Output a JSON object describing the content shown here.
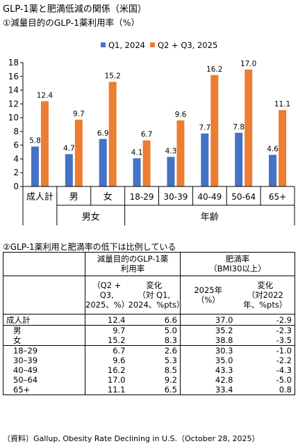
{
  "title": "GLP-1薬と肥満低減の関係（米国）",
  "chart_data": {
    "type": "bar",
    "title": "①減量目的のGLP-1薬利用率（%）",
    "categories": [
      "成人計",
      "男",
      "女",
      "18-29",
      "30-39",
      "40-49",
      "50-64",
      "65+"
    ],
    "groups": [
      {
        "label": "男女",
        "categories": [
          "男",
          "女"
        ]
      },
      {
        "label": "年齢",
        "categories": [
          "18-29",
          "30-39",
          "40-49",
          "50-64",
          "65+"
        ]
      }
    ],
    "series": [
      {
        "name": "Q1, 2024",
        "color": "#4472C4",
        "values": [
          5.8,
          4.7,
          6.9,
          4.1,
          4.3,
          7.7,
          7.8,
          4.6
        ],
        "labels": [
          "5.8",
          "4.7",
          "6.9",
          "4.1",
          "4.3",
          "7.7",
          "7.8",
          "4.6"
        ]
      },
      {
        "name": "Q2 + Q3, 2025",
        "color": "#ED7D31",
        "values": [
          12.4,
          9.7,
          15.2,
          6.7,
          9.6,
          16.2,
          17.0,
          11.1
        ],
        "labels": [
          "12.4",
          "9.7",
          "15.2",
          "6.7",
          "9.6",
          "16.2",
          "17.0",
          "11.1"
        ]
      }
    ],
    "ylim": [
      0,
      18
    ],
    "yticks": [
      "0",
      "2",
      "4",
      "6",
      "8",
      "10",
      "12",
      "14",
      "16",
      "18"
    ],
    "grid": false,
    "legend": "top"
  },
  "table": {
    "title": "②GLP-1薬利用と肥満率の低下は比例している",
    "header1": {
      "glp1": [
        "減量目的のGLP-1薬",
        "利用率"
      ],
      "obesity": [
        "肥満率",
        "（BMI30以上）"
      ]
    },
    "header2": {
      "usage": [
        "（Q2 + Q3,",
        "2025、%）"
      ],
      "usage_change": [
        "変化",
        "（対 Q1,",
        "2024、%pts）"
      ],
      "obesity_rate": [
        "2025年",
        "（%）"
      ],
      "obesity_change": [
        "変化",
        "（対2022",
        "年、%pts）"
      ]
    },
    "rows": [
      {
        "label": "成人計",
        "usage": "12.4",
        "usage_change": "6.6",
        "obesity": "37.0",
        "obesity_change": "-2.9"
      },
      {
        "label": "男",
        "usage": "9.7",
        "usage_change": "5.0",
        "obesity": "35.2",
        "obesity_change": "-2.3"
      },
      {
        "label": "女",
        "usage": "15.2",
        "usage_change": "8.3",
        "obesity": "38.8",
        "obesity_change": "-3.5"
      },
      {
        "label": "18–29",
        "usage": "6.7",
        "usage_change": "2.6",
        "obesity": "30.3",
        "obesity_change": "-1.0"
      },
      {
        "label": "30–39",
        "usage": "9.6",
        "usage_change": "5.3",
        "obesity": "35.0",
        "obesity_change": "-2.2"
      },
      {
        "label": "40–49",
        "usage": "16.2",
        "usage_change": "8.5",
        "obesity": "43.3",
        "obesity_change": "-4.3"
      },
      {
        "label": "50–64",
        "usage": "17.0",
        "usage_change": "9.2",
        "obesity": "42.8",
        "obesity_change": "-5.0"
      },
      {
        "label": "65+",
        "usage": "11.1",
        "usage_change": "6.5",
        "obesity": "33.4",
        "obesity_change": "0.8"
      }
    ]
  },
  "source": "（資料）Gallup, Obesity Rate Declining in U.S.（October 28, 2025）"
}
